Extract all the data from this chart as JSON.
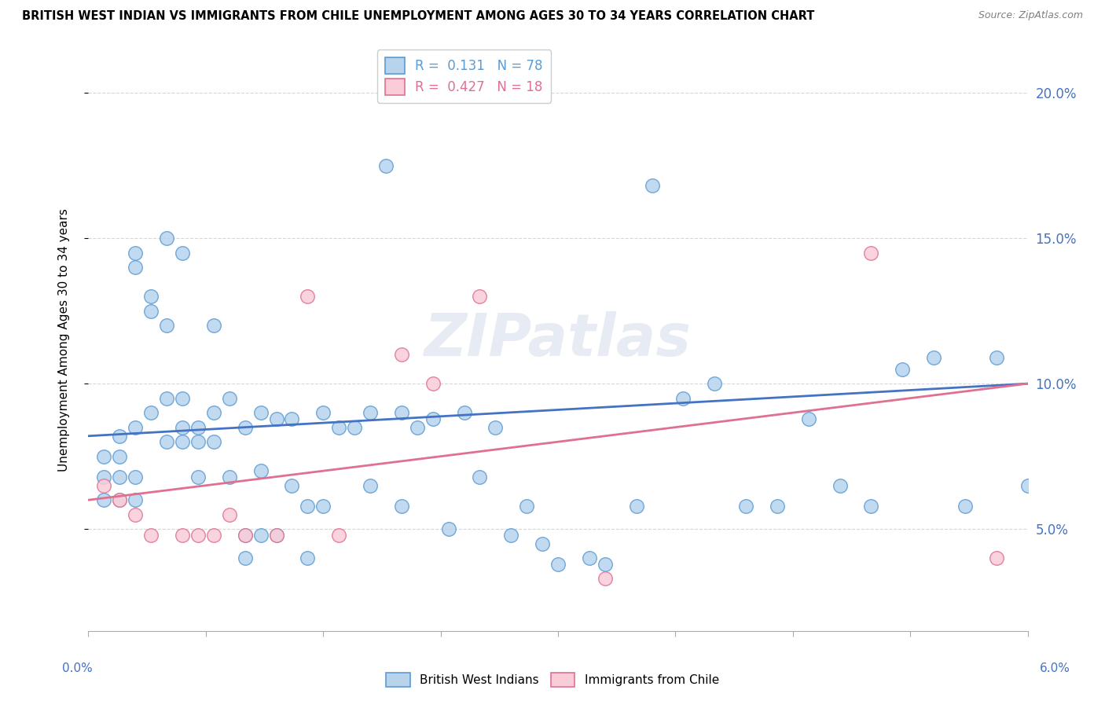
{
  "title": "BRITISH WEST INDIAN VS IMMIGRANTS FROM CHILE UNEMPLOYMENT AMONG AGES 30 TO 34 YEARS CORRELATION CHART",
  "source": "Source: ZipAtlas.com",
  "ylabel": "Unemployment Among Ages 30 to 34 years",
  "right_yticks": [
    0.05,
    0.1,
    0.15,
    0.2
  ],
  "right_yticklabels": [
    "5.0%",
    "10.0%",
    "15.0%",
    "20.0%"
  ],
  "xlim": [
    0.0,
    0.06
  ],
  "ylim": [
    0.015,
    0.215
  ],
  "legend1_R": "0.131",
  "legend1_N": "78",
  "legend2_R": "0.427",
  "legend2_N": "18",
  "blue_color": "#b8d4ed",
  "blue_edge": "#5b9bd5",
  "pink_color": "#f9ccd8",
  "pink_edge": "#e07090",
  "blue_line_color": "#4472c4",
  "pink_line_color": "#e07090",
  "watermark": "ZIPatlas",
  "blue_x": [
    0.001,
    0.001,
    0.001,
    0.002,
    0.002,
    0.002,
    0.002,
    0.003,
    0.003,
    0.003,
    0.003,
    0.003,
    0.004,
    0.004,
    0.004,
    0.005,
    0.005,
    0.005,
    0.005,
    0.006,
    0.006,
    0.006,
    0.006,
    0.007,
    0.007,
    0.007,
    0.008,
    0.008,
    0.008,
    0.009,
    0.009,
    0.01,
    0.01,
    0.01,
    0.011,
    0.011,
    0.011,
    0.012,
    0.012,
    0.013,
    0.013,
    0.014,
    0.014,
    0.015,
    0.015,
    0.016,
    0.017,
    0.018,
    0.018,
    0.019,
    0.02,
    0.02,
    0.021,
    0.022,
    0.023,
    0.024,
    0.025,
    0.026,
    0.027,
    0.028,
    0.029,
    0.03,
    0.032,
    0.033,
    0.035,
    0.036,
    0.038,
    0.04,
    0.042,
    0.044,
    0.046,
    0.048,
    0.05,
    0.052,
    0.054,
    0.056,
    0.058,
    0.06
  ],
  "blue_y": [
    0.075,
    0.068,
    0.06,
    0.082,
    0.075,
    0.068,
    0.06,
    0.145,
    0.14,
    0.085,
    0.068,
    0.06,
    0.13,
    0.125,
    0.09,
    0.15,
    0.12,
    0.095,
    0.08,
    0.145,
    0.095,
    0.085,
    0.08,
    0.085,
    0.08,
    0.068,
    0.12,
    0.09,
    0.08,
    0.095,
    0.068,
    0.085,
    0.048,
    0.04,
    0.09,
    0.07,
    0.048,
    0.088,
    0.048,
    0.088,
    0.065,
    0.058,
    0.04,
    0.09,
    0.058,
    0.085,
    0.085,
    0.09,
    0.065,
    0.175,
    0.09,
    0.058,
    0.085,
    0.088,
    0.05,
    0.09,
    0.068,
    0.085,
    0.048,
    0.058,
    0.045,
    0.038,
    0.04,
    0.038,
    0.058,
    0.168,
    0.095,
    0.1,
    0.058,
    0.058,
    0.088,
    0.065,
    0.058,
    0.105,
    0.109,
    0.058,
    0.109,
    0.065
  ],
  "pink_x": [
    0.001,
    0.002,
    0.003,
    0.004,
    0.006,
    0.007,
    0.008,
    0.009,
    0.01,
    0.012,
    0.014,
    0.016,
    0.02,
    0.022,
    0.025,
    0.033,
    0.05,
    0.058
  ],
  "pink_y": [
    0.065,
    0.06,
    0.055,
    0.048,
    0.048,
    0.048,
    0.048,
    0.055,
    0.048,
    0.048,
    0.13,
    0.048,
    0.11,
    0.1,
    0.13,
    0.033,
    0.145,
    0.04
  ]
}
